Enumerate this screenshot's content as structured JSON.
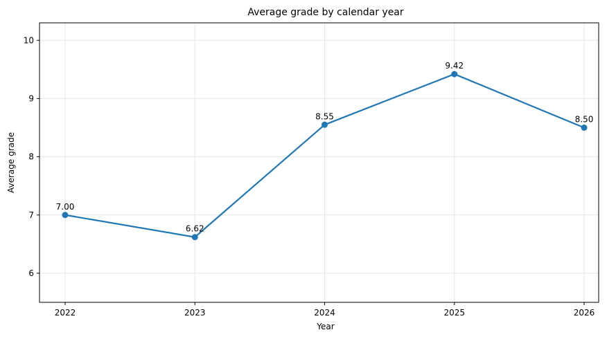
{
  "chart_data": {
    "type": "line",
    "title": "Average grade by calendar year",
    "xlabel": "Year",
    "ylabel": "Average grade",
    "categories": [
      "2022",
      "2023",
      "2024",
      "2025",
      "2026"
    ],
    "series": [
      {
        "values": [
          7.0,
          6.62,
          8.55,
          9.42,
          8.5
        ],
        "labels": [
          "7.00",
          "6.62",
          "8.55",
          "9.42",
          "8.50"
        ],
        "color": "#1f77b4"
      }
    ],
    "ylim": [
      5.5,
      10.3
    ],
    "yticks": [
      "6",
      "7",
      "8",
      "9",
      "10"
    ],
    "grid": true
  }
}
